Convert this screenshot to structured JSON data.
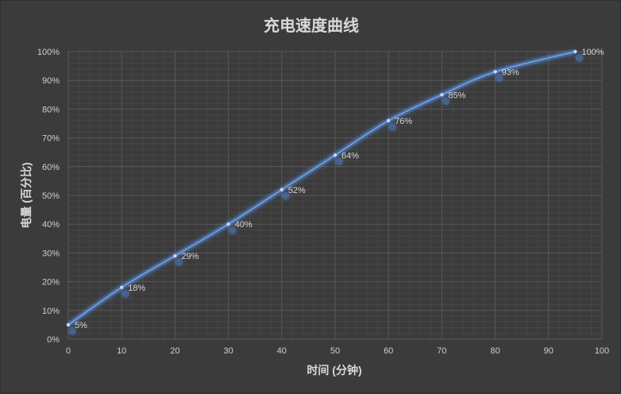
{
  "chart_data": {
    "type": "scatter",
    "title": "充电速度曲线",
    "xlabel": "时间 (分钟)",
    "ylabel": "电量 (百分比)",
    "xlim": [
      0,
      100
    ],
    "ylim": [
      0,
      100
    ],
    "x_ticks": [
      "0",
      "10",
      "20",
      "30",
      "40",
      "50",
      "60",
      "70",
      "80",
      "90",
      "100"
    ],
    "y_ticks": [
      "0%",
      "10%",
      "20%",
      "30%",
      "40%",
      "50%",
      "60%",
      "70%",
      "80%",
      "90%",
      "100%"
    ],
    "grid": true,
    "smooth_line": true,
    "series": [
      {
        "x": [
          0,
          10,
          20,
          30,
          40,
          50,
          60,
          70,
          80,
          95
        ],
        "y": [
          5,
          18,
          29,
          40,
          52,
          64,
          76,
          85,
          93,
          100
        ],
        "labels": [
          "5%",
          "18%",
          "29%",
          "40%",
          "52%",
          "64%",
          "76%",
          "85%",
          "93%",
          "100%"
        ],
        "color": "#6f9bd8"
      }
    ],
    "colors": {
      "background": "#3b3b3b",
      "grid": "#555555",
      "line": "#6f9bd8",
      "glow": "#4f86d9"
    }
  }
}
